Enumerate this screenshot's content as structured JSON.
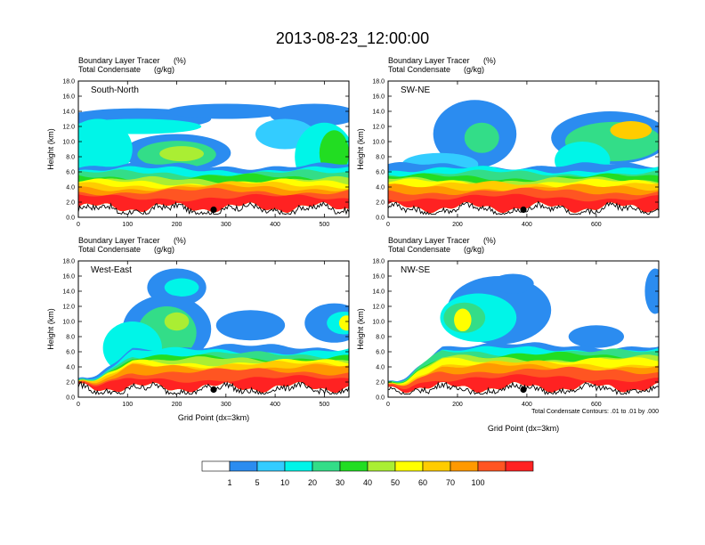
{
  "title": "2013-08-23_12:00:00",
  "colors": [
    "#ffffff",
    "#2b8cf0",
    "#33ccff",
    "#00f5e8",
    "#33dd88",
    "#22dd22",
    "#aaee33",
    "#ffff00",
    "#ffcc00",
    "#ff9900",
    "#ff5522",
    "#ff2222"
  ],
  "chart_data": [
    {
      "type": "heatmap",
      "section": "South-North",
      "left_title": "Boundary Layer Tracer",
      "left_unit": "(%)",
      "left_title2": "Total Condensate",
      "left_unit2": "(g/kg)",
      "ylabel": "Height (km)",
      "xlabel": "",
      "xlim": [
        0,
        550
      ],
      "ylim": [
        0,
        18
      ],
      "x_ticks": [
        0,
        100,
        200,
        300,
        400,
        500
      ],
      "y_ticks": [
        0,
        2,
        4,
        6,
        8,
        10,
        12,
        14,
        16,
        18
      ],
      "marker_x": 275,
      "marker_y": 1.0
    },
    {
      "type": "heatmap",
      "section": "SW-NE",
      "left_title": "Boundary Layer Tracer",
      "left_unit": "(%)",
      "left_title2": "Total Condensate",
      "left_unit2": "(g/kg)",
      "ylabel": "Height (km)",
      "xlabel": "",
      "xlim": [
        0,
        780
      ],
      "ylim": [
        0,
        18
      ],
      "x_ticks": [
        0,
        200,
        400,
        600
      ],
      "y_ticks": [
        0,
        2,
        4,
        6,
        8,
        10,
        12,
        14,
        16,
        18
      ],
      "marker_x": 390,
      "marker_y": 1.0
    },
    {
      "type": "heatmap",
      "section": "West-East",
      "left_title": "Boundary Layer Tracer",
      "left_unit": "(%)",
      "left_title2": "Total Condensate",
      "left_unit2": "(g/kg)",
      "ylabel": "Height (km)",
      "xlabel": "Grid Point (dx=3km)",
      "xlim": [
        0,
        550
      ],
      "ylim": [
        0,
        18
      ],
      "x_ticks": [
        0,
        100,
        200,
        300,
        400,
        500
      ],
      "y_ticks": [
        0,
        2,
        4,
        6,
        8,
        10,
        12,
        14,
        16,
        18
      ],
      "marker_x": 275,
      "marker_y": 1.0
    },
    {
      "type": "heatmap",
      "section": "NW-SE",
      "left_title": "Boundary Layer Tracer",
      "left_unit": "(%)",
      "left_title2": "Total Condensate",
      "left_unit2": "(g/kg)",
      "ylabel": "Height (km)",
      "xlabel": "Grid Point (dx=3km)",
      "xlim": [
        0,
        780
      ],
      "ylim": [
        0,
        18
      ],
      "x_ticks": [
        0,
        200,
        400,
        600
      ],
      "y_ticks": [
        0,
        2,
        4,
        6,
        8,
        10,
        12,
        14,
        16,
        18
      ],
      "marker_x": 390,
      "marker_y": 1.0,
      "note": "Total Condensate Contours: .01 to .01 by .000"
    }
  ],
  "colorbar": {
    "labels": [
      "1",
      "5",
      "10",
      "20",
      "30",
      "40",
      "50",
      "60",
      "70",
      "100"
    ]
  }
}
